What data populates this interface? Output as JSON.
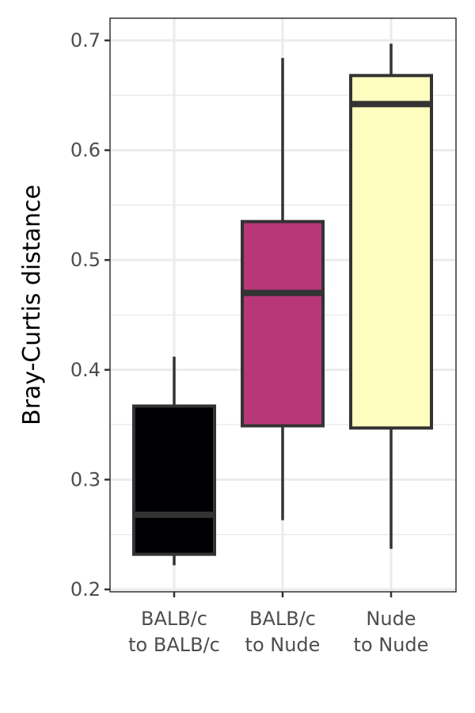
{
  "chart_data": {
    "type": "box",
    "title": "",
    "xlabel": "",
    "ylabel": "Bray-Curtis distance",
    "ylim": [
      0.2,
      0.7
    ],
    "yticks": [
      "0.2",
      "0.3",
      "0.4",
      "0.5",
      "0.6",
      "0.7"
    ],
    "grid": true,
    "legend": "none",
    "categories": [
      [
        "BALB/c",
        "to BALB/c"
      ],
      [
        "BALB/c",
        "to Nude"
      ],
      [
        "Nude",
        "to Nude"
      ]
    ],
    "boxes": [
      {
        "whisker_low": 0.222,
        "q1": 0.232,
        "median": 0.268,
        "q3": 0.367,
        "whisker_high": 0.412,
        "color": "#000004"
      },
      {
        "whisker_low": 0.263,
        "q1": 0.349,
        "median": 0.47,
        "q3": 0.535,
        "whisker_high": 0.684,
        "color": "#b73779"
      },
      {
        "whisker_low": 0.237,
        "q1": 0.347,
        "median": 0.642,
        "q3": 0.668,
        "whisker_high": 0.697,
        "color": "#fcfdbf"
      }
    ]
  }
}
